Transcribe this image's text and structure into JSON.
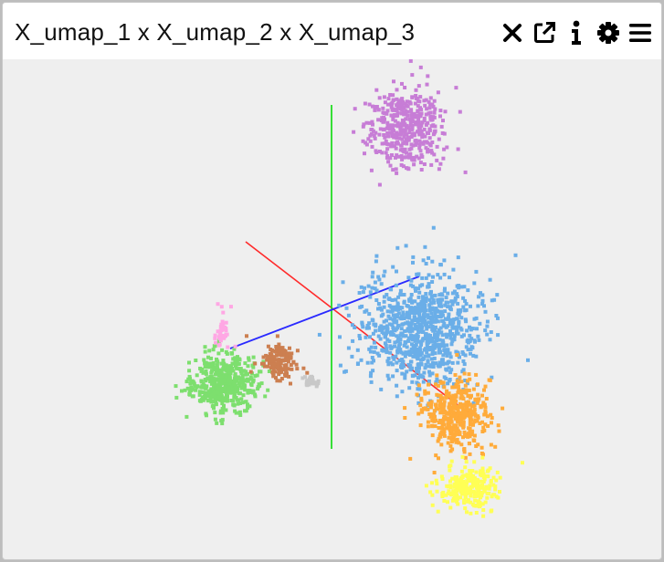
{
  "window": {
    "title": "X_umap_1 x X_umap_2 x X_umap_3"
  },
  "toolbar": {
    "icons": [
      "close-icon",
      "external-link-icon",
      "info-icon",
      "gear-icon",
      "menu-icon"
    ]
  },
  "chart_data": {
    "type": "scatter",
    "dimensions": [
      "X_umap_1",
      "X_umap_2",
      "X_umap_3"
    ],
    "axes_colors": {
      "x": "#ff2a2a",
      "y": "#22dd22",
      "z": "#2a2aff"
    },
    "clusters": [
      {
        "color": "#c77dd6",
        "count": 420
      },
      {
        "color": "#6aaee8",
        "count": 900
      },
      {
        "color": "#ffab3a",
        "count": 420
      },
      {
        "color": "#ffff55",
        "count": 260
      },
      {
        "color": "#7ddf6e",
        "count": 520
      },
      {
        "color": "#cc7f50",
        "count": 170
      },
      {
        "color": "#ffa7e4",
        "count": 40
      },
      {
        "color": "#c8c8c8",
        "count": 30
      }
    ]
  }
}
